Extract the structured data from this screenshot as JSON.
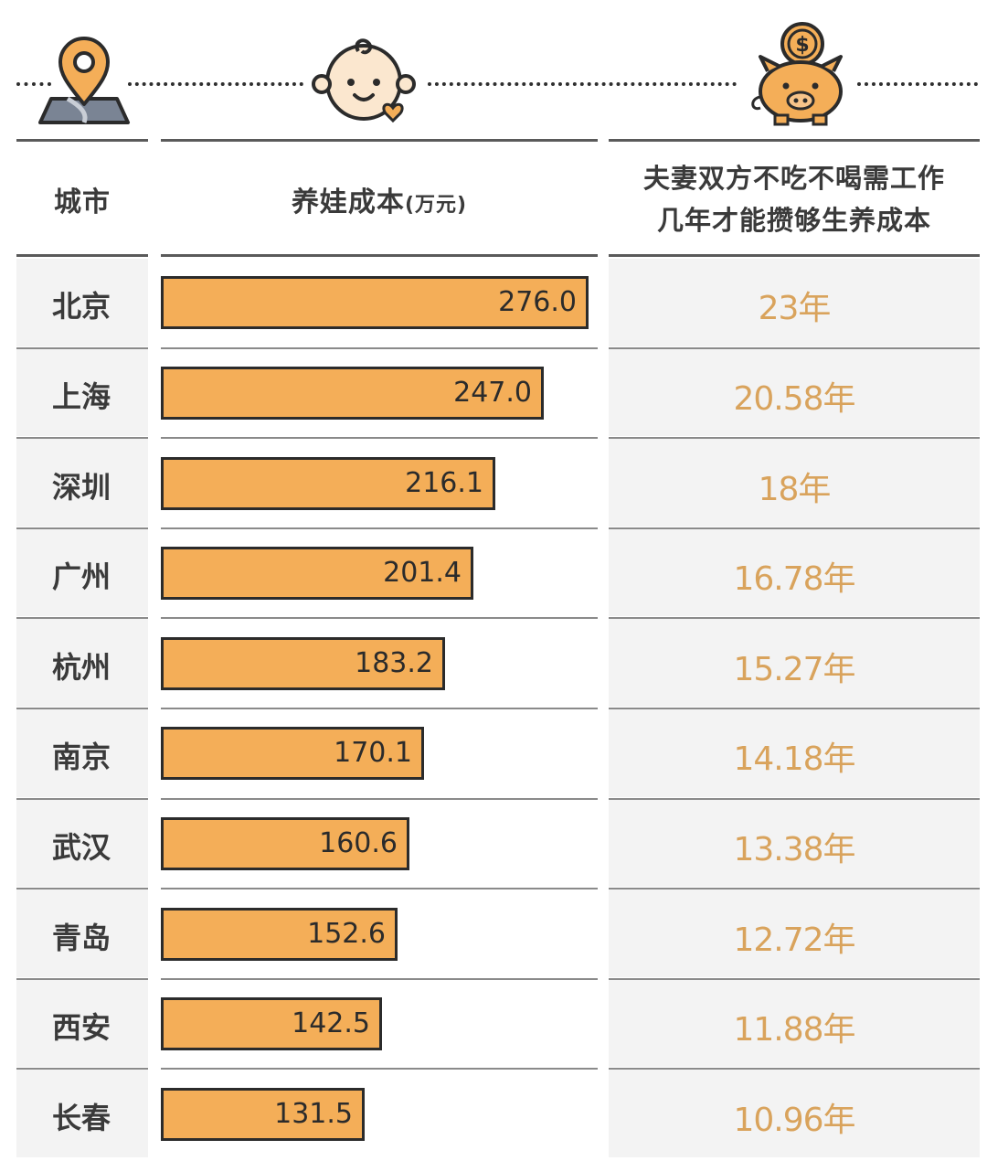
{
  "header": {
    "city_label": "城市",
    "cost_label": "养娃成本",
    "cost_unit": "(万元)",
    "years_label_line1": "夫妻双方不吃不喝需工作",
    "years_label_line2": "几年才能攒够生养成本"
  },
  "icons": [
    "map-pin-icon",
    "baby-face-icon",
    "piggy-bank-icon"
  ],
  "colors": {
    "bar_fill": "#f4ae58",
    "bar_border": "#2b2b2b",
    "years_text": "#d9a35c",
    "row_shade": "#f3f3f3"
  },
  "chart_data": {
    "type": "bar",
    "orientation": "horizontal",
    "categories": [
      "北京",
      "上海",
      "深圳",
      "广州",
      "杭州",
      "南京",
      "武汉",
      "青岛",
      "西安",
      "长春"
    ],
    "series": [
      {
        "values": [
          276.0,
          247.0,
          216.1,
          201.4,
          183.2,
          170.1,
          160.6,
          152.6,
          142.5,
          131.5
        ]
      }
    ],
    "value_labels": [
      "276.0",
      "247.0",
      "216.1",
      "201.4",
      "183.2",
      "170.1",
      "160.6",
      "152.6",
      "142.5",
      "131.5"
    ],
    "years": [
      "23年",
      "20.58年",
      "18年",
      "16.78年",
      "15.27年",
      "14.18年",
      "13.38年",
      "12.72年",
      "11.88年",
      "10.96年"
    ],
    "xlim": [
      0,
      276.0
    ],
    "grid": false
  }
}
